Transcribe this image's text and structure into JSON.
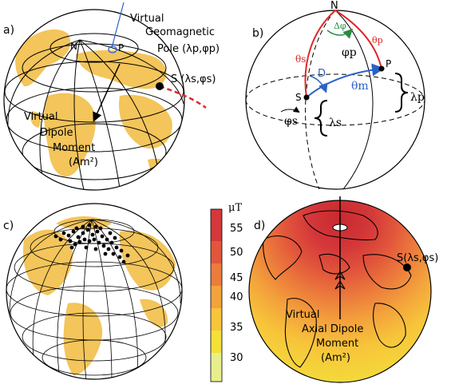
{
  "panel_a": {
    "label": "a)",
    "north": "N",
    "pole_p": "P",
    "vgp_line1": "Virtual",
    "vgp_line2": "Geomagnetic",
    "vgp_line3": "Pole (λp,φp)",
    "site": "S (λs,φs)",
    "vdm_line1": "Virtual",
    "vdm_line2": "Dipole",
    "vdm_line3": "Moment",
    "vdm_line4": "(Am²)"
  },
  "panel_b": {
    "label": "b)",
    "north": "N",
    "delta_phi": "Δφ",
    "theta_s": "θs",
    "theta_p": "θp",
    "phi_p": "φp",
    "D": "D",
    "theta_m": "θm",
    "P": "P",
    "S": "S",
    "lambda_p": "λp",
    "lambda_s": "λs",
    "phi_s": "φs"
  },
  "panel_c": {
    "label": "c)"
  },
  "colorbar": {
    "unit": "μT",
    "ticks": [
      "55",
      "50",
      "45",
      "40",
      "35",
      "30"
    ],
    "colors": [
      "#d4383a",
      "#e2563b",
      "#ec7c3c",
      "#f3a23c",
      "#f7c43a",
      "#f4e036",
      "#e8ef8a"
    ]
  },
  "panel_d": {
    "label": "d)",
    "site": "S(λs,φs)",
    "vadm_line1": "Virtual",
    "vadm_line2": "Axial Dipole",
    "vadm_line3": "Moment",
    "vadm_line4": "(Am²)"
  },
  "colors": {
    "land": "#f3c55b",
    "arrow_red": "#e02727",
    "arrow_blue": "#2c62c7",
    "arrow_green": "#2a8a45"
  }
}
